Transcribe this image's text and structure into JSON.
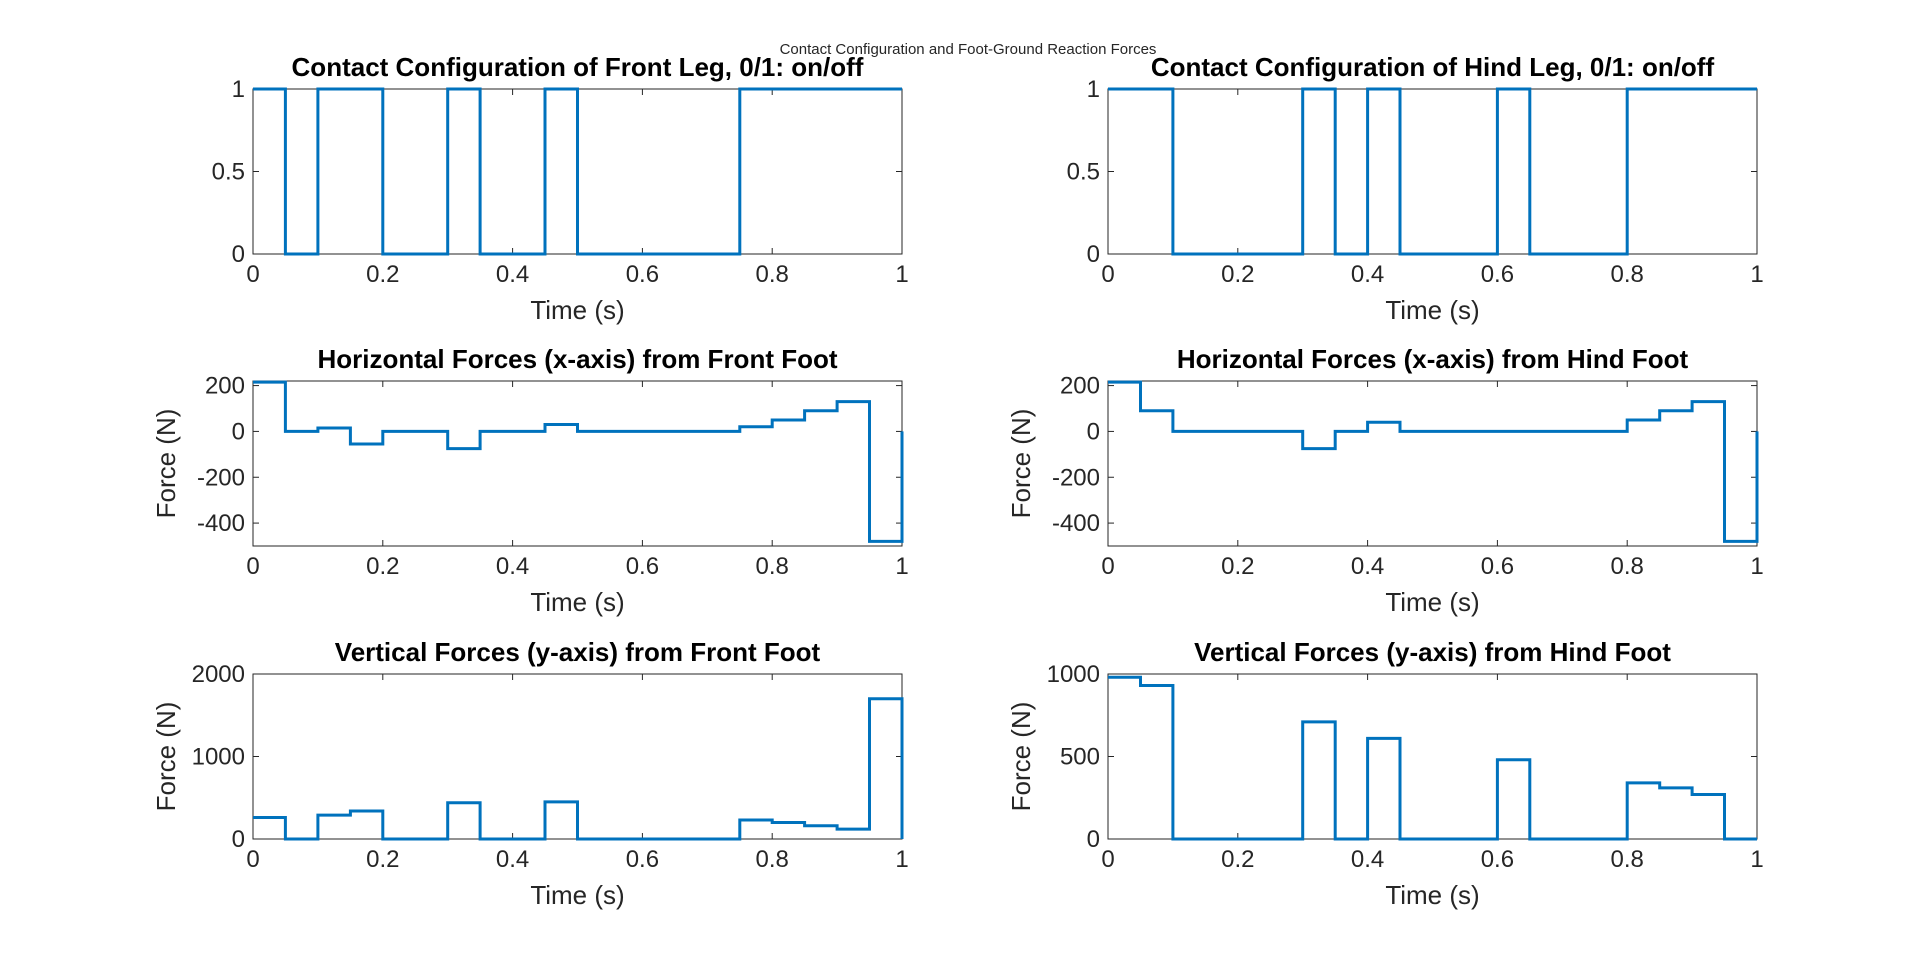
{
  "figure": {
    "suptitle": "Contact Configuration and Foot-Ground Reaction Forces",
    "line_color": "#0072BD"
  },
  "chart_data": [
    {
      "type": "line",
      "step": true,
      "title": "Contact Configuration of Front Leg, 0/1: on/off",
      "xlabel": "Time (s)",
      "ylabel": "",
      "xlim": [
        0,
        1
      ],
      "ylim": [
        0,
        1
      ],
      "xticks": [
        0,
        0.2,
        0.4,
        0.6,
        0.8,
        1
      ],
      "xtick_labels": [
        "0",
        "0.2",
        "0.4",
        "0.6",
        "0.8",
        "1"
      ],
      "yticks": [
        0,
        0.5,
        1
      ],
      "ytick_labels": [
        "0",
        "0.5",
        "1"
      ],
      "x": [
        0,
        0.05,
        0.1,
        0.15,
        0.2,
        0.25,
        0.3,
        0.35,
        0.4,
        0.45,
        0.5,
        0.55,
        0.6,
        0.65,
        0.7,
        0.75,
        0.8,
        0.85,
        0.9,
        0.95,
        1
      ],
      "values": [
        1,
        0,
        1,
        1,
        0,
        0,
        1,
        0,
        0,
        1,
        0,
        0,
        0,
        0,
        0,
        1,
        1,
        1,
        1,
        1,
        1
      ]
    },
    {
      "type": "line",
      "step": true,
      "title": "Contact Configuration of Hind Leg, 0/1: on/off",
      "xlabel": "Time (s)",
      "ylabel": "",
      "xlim": [
        0,
        1
      ],
      "ylim": [
        0,
        1
      ],
      "xticks": [
        0,
        0.2,
        0.4,
        0.6,
        0.8,
        1
      ],
      "xtick_labels": [
        "0",
        "0.2",
        "0.4",
        "0.6",
        "0.8",
        "1"
      ],
      "yticks": [
        0,
        0.5,
        1
      ],
      "ytick_labels": [
        "0",
        "0.5",
        "1"
      ],
      "x": [
        0,
        0.05,
        0.1,
        0.15,
        0.2,
        0.25,
        0.3,
        0.35,
        0.4,
        0.45,
        0.5,
        0.55,
        0.6,
        0.65,
        0.7,
        0.75,
        0.8,
        0.85,
        0.9,
        0.95,
        1
      ],
      "values": [
        1,
        1,
        0,
        0,
        0,
        0,
        1,
        0,
        1,
        0,
        0,
        0,
        1,
        0,
        0,
        0,
        1,
        1,
        1,
        1,
        1
      ]
    },
    {
      "type": "line",
      "step": true,
      "title": "Horizontal Forces (x-axis) from Front Foot",
      "xlabel": "Time (s)",
      "ylabel": "Force (N)",
      "xlim": [
        0,
        1
      ],
      "ylim": [
        -500,
        220
      ],
      "xticks": [
        0,
        0.2,
        0.4,
        0.6,
        0.8,
        1
      ],
      "xtick_labels": [
        "0",
        "0.2",
        "0.4",
        "0.6",
        "0.8",
        "1"
      ],
      "yticks": [
        -400,
        -200,
        0,
        200
      ],
      "ytick_labels": [
        "-400",
        "-200",
        "0",
        "200"
      ],
      "x": [
        0,
        0.05,
        0.1,
        0.15,
        0.2,
        0.25,
        0.3,
        0.35,
        0.4,
        0.45,
        0.5,
        0.55,
        0.6,
        0.65,
        0.7,
        0.75,
        0.8,
        0.85,
        0.9,
        0.95,
        1
      ],
      "values": [
        215,
        0,
        15,
        -55,
        0,
        0,
        -75,
        0,
        0,
        30,
        0,
        0,
        0,
        0,
        0,
        20,
        50,
        90,
        130,
        -480,
        0
      ]
    },
    {
      "type": "line",
      "step": true,
      "title": "Horizontal Forces (x-axis) from Hind Foot",
      "xlabel": "Time (s)",
      "ylabel": "Force (N)",
      "xlim": [
        0,
        1
      ],
      "ylim": [
        -500,
        220
      ],
      "xticks": [
        0,
        0.2,
        0.4,
        0.6,
        0.8,
        1
      ],
      "xtick_labels": [
        "0",
        "0.2",
        "0.4",
        "0.6",
        "0.8",
        "1"
      ],
      "yticks": [
        -400,
        -200,
        0,
        200
      ],
      "ytick_labels": [
        "-400",
        "-200",
        "0",
        "200"
      ],
      "x": [
        0,
        0.05,
        0.1,
        0.15,
        0.2,
        0.25,
        0.3,
        0.35,
        0.4,
        0.45,
        0.5,
        0.55,
        0.6,
        0.65,
        0.7,
        0.75,
        0.8,
        0.85,
        0.9,
        0.95,
        1
      ],
      "values": [
        215,
        90,
        0,
        0,
        0,
        0,
        -75,
        0,
        40,
        0,
        0,
        0,
        0,
        0,
        0,
        0,
        50,
        90,
        130,
        -480,
        0
      ]
    },
    {
      "type": "line",
      "step": true,
      "title": "Vertical Forces (y-axis) from Front Foot",
      "xlabel": "Time (s)",
      "ylabel": "Force (N)",
      "xlim": [
        0,
        1
      ],
      "ylim": [
        0,
        2000
      ],
      "xticks": [
        0,
        0.2,
        0.4,
        0.6,
        0.8,
        1
      ],
      "xtick_labels": [
        "0",
        "0.2",
        "0.4",
        "0.6",
        "0.8",
        "1"
      ],
      "yticks": [
        0,
        1000,
        2000
      ],
      "ytick_labels": [
        "0",
        "1000",
        "2000"
      ],
      "x": [
        0,
        0.05,
        0.1,
        0.15,
        0.2,
        0.25,
        0.3,
        0.35,
        0.4,
        0.45,
        0.5,
        0.55,
        0.6,
        0.65,
        0.7,
        0.75,
        0.8,
        0.85,
        0.9,
        0.95,
        1
      ],
      "values": [
        260,
        0,
        290,
        340,
        0,
        0,
        440,
        0,
        0,
        450,
        0,
        0,
        0,
        0,
        0,
        230,
        200,
        160,
        120,
        1700,
        0
      ]
    },
    {
      "type": "line",
      "step": true,
      "title": "Vertical Forces (y-axis) from Hind Foot",
      "xlabel": "Time (s)",
      "ylabel": "Force (N)",
      "xlim": [
        0,
        1
      ],
      "ylim": [
        0,
        1000
      ],
      "xticks": [
        0,
        0.2,
        0.4,
        0.6,
        0.8,
        1
      ],
      "xtick_labels": [
        "0",
        "0.2",
        "0.4",
        "0.6",
        "0.8",
        "1"
      ],
      "yticks": [
        0,
        500,
        1000
      ],
      "ytick_labels": [
        "0",
        "500",
        "1000"
      ],
      "x": [
        0,
        0.05,
        0.1,
        0.15,
        0.2,
        0.25,
        0.3,
        0.35,
        0.4,
        0.45,
        0.5,
        0.55,
        0.6,
        0.65,
        0.7,
        0.75,
        0.8,
        0.85,
        0.9,
        0.95,
        1
      ],
      "values": [
        980,
        930,
        0,
        0,
        0,
        0,
        710,
        0,
        610,
        0,
        0,
        0,
        480,
        0,
        0,
        0,
        340,
        310,
        270,
        0,
        0
      ]
    }
  ]
}
